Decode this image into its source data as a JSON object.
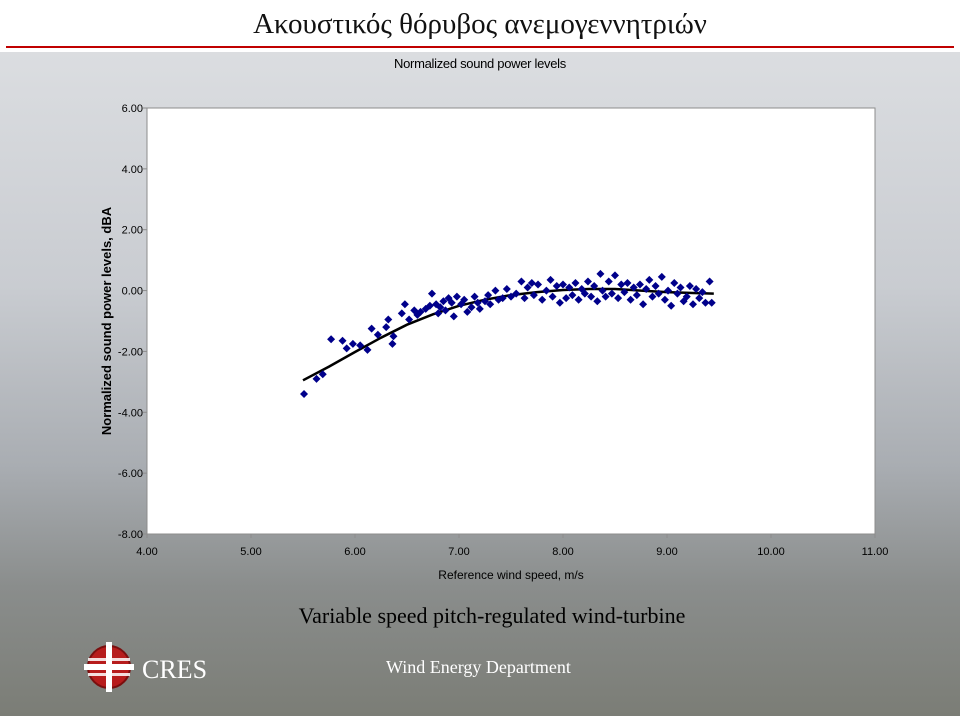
{
  "slide": {
    "title": "Ακουστικός θόρυβος ανεμογεννητριών",
    "caption": "Variable speed pitch-regulated wind-turbine",
    "org_name": "CRES",
    "department": "Wind Energy Department",
    "logo_icon": "cres-logo-icon"
  },
  "colors": {
    "marker": "#00008b",
    "trend_line": "#000000",
    "plot_bg": "#ffffff",
    "accent_rule": "#c00000"
  },
  "chart_data": {
    "type": "scatter",
    "title": "Normalized sound power levels",
    "xlabel": "Reference wind speed, m/s",
    "ylabel": "Normalized sound power levels, dBA",
    "xlim": [
      4,
      11
    ],
    "ylim": [
      -8,
      6
    ],
    "x_ticks": [
      "4.00",
      "5.00",
      "6.00",
      "7.00",
      "8.00",
      "9.00",
      "10.00",
      "11.00"
    ],
    "y_ticks": [
      "6.00",
      "4.00",
      "2.00",
      "0.00",
      "-2.00",
      "-4.00",
      "-6.00",
      "-8.00"
    ],
    "grid": false,
    "legend": "none",
    "marker": "diamond",
    "series": [
      {
        "points": [
          [
            5.51,
            -3.4
          ],
          [
            5.63,
            -2.9
          ],
          [
            5.69,
            -2.75
          ],
          [
            5.77,
            -1.6
          ],
          [
            5.88,
            -1.65
          ],
          [
            5.92,
            -1.9
          ],
          [
            5.98,
            -1.75
          ],
          [
            6.05,
            -1.8
          ],
          [
            6.12,
            -1.95
          ],
          [
            6.16,
            -1.25
          ],
          [
            6.22,
            -1.45
          ],
          [
            6.3,
            -1.2
          ],
          [
            6.32,
            -0.95
          ],
          [
            6.36,
            -1.75
          ],
          [
            6.37,
            -1.5
          ],
          [
            6.45,
            -0.75
          ],
          [
            6.48,
            -0.45
          ],
          [
            6.52,
            -0.95
          ],
          [
            6.57,
            -0.65
          ],
          [
            6.6,
            -0.8
          ],
          [
            6.63,
            -0.7
          ],
          [
            6.68,
            -0.6
          ],
          [
            6.72,
            -0.5
          ],
          [
            6.74,
            -0.1
          ],
          [
            6.78,
            -0.45
          ],
          [
            6.8,
            -0.75
          ],
          [
            6.82,
            -0.55
          ],
          [
            6.85,
            -0.35
          ],
          [
            6.87,
            -0.65
          ],
          [
            6.9,
            -0.25
          ],
          [
            6.93,
            -0.4
          ],
          [
            6.95,
            -0.85
          ],
          [
            6.98,
            -0.2
          ],
          [
            7.02,
            -0.45
          ],
          [
            7.05,
            -0.3
          ],
          [
            7.08,
            -0.7
          ],
          [
            7.12,
            -0.55
          ],
          [
            7.15,
            -0.2
          ],
          [
            7.18,
            -0.4
          ],
          [
            7.2,
            -0.6
          ],
          [
            7.25,
            -0.35
          ],
          [
            7.28,
            -0.15
          ],
          [
            7.3,
            -0.45
          ],
          [
            7.35,
            0.0
          ],
          [
            7.38,
            -0.3
          ],
          [
            7.42,
            -0.25
          ],
          [
            7.46,
            0.05
          ],
          [
            7.5,
            -0.2
          ],
          [
            7.55,
            -0.1
          ],
          [
            7.6,
            0.3
          ],
          [
            7.63,
            -0.25
          ],
          [
            7.66,
            0.1
          ],
          [
            7.7,
            0.25
          ],
          [
            7.72,
            -0.15
          ],
          [
            7.76,
            0.2
          ],
          [
            7.8,
            -0.3
          ],
          [
            7.84,
            0.0
          ],
          [
            7.88,
            0.35
          ],
          [
            7.9,
            -0.2
          ],
          [
            7.94,
            0.15
          ],
          [
            7.97,
            -0.4
          ],
          [
            8.0,
            0.2
          ],
          [
            8.03,
            -0.25
          ],
          [
            8.06,
            0.1
          ],
          [
            8.09,
            -0.15
          ],
          [
            8.12,
            0.25
          ],
          [
            8.15,
            -0.3
          ],
          [
            8.18,
            0.05
          ],
          [
            8.21,
            -0.1
          ],
          [
            8.24,
            0.3
          ],
          [
            8.27,
            -0.2
          ],
          [
            8.3,
            0.15
          ],
          [
            8.33,
            -0.35
          ],
          [
            8.36,
            0.55
          ],
          [
            8.38,
            0.0
          ],
          [
            8.41,
            -0.2
          ],
          [
            8.44,
            0.3
          ],
          [
            8.47,
            -0.1
          ],
          [
            8.5,
            0.5
          ],
          [
            8.53,
            -0.25
          ],
          [
            8.56,
            0.2
          ],
          [
            8.59,
            -0.05
          ],
          [
            8.62,
            0.25
          ],
          [
            8.65,
            -0.3
          ],
          [
            8.68,
            0.1
          ],
          [
            8.71,
            -0.15
          ],
          [
            8.74,
            0.2
          ],
          [
            8.77,
            -0.45
          ],
          [
            8.8,
            0.05
          ],
          [
            8.83,
            0.35
          ],
          [
            8.86,
            -0.2
          ],
          [
            8.89,
            0.15
          ],
          [
            8.92,
            -0.1
          ],
          [
            8.95,
            0.45
          ],
          [
            8.98,
            -0.3
          ],
          [
            9.01,
            0.0
          ],
          [
            9.04,
            -0.5
          ],
          [
            9.07,
            0.25
          ],
          [
            9.1,
            -0.1
          ],
          [
            9.13,
            0.1
          ],
          [
            9.16,
            -0.35
          ],
          [
            9.19,
            -0.2
          ],
          [
            9.22,
            0.15
          ],
          [
            9.25,
            -0.45
          ],
          [
            9.28,
            0.05
          ],
          [
            9.31,
            -0.25
          ],
          [
            9.34,
            -0.05
          ],
          [
            9.37,
            -0.4
          ],
          [
            9.41,
            0.3
          ],
          [
            9.43,
            -0.4
          ]
        ]
      }
    ],
    "trendline": {
      "type": "polynomial",
      "points": [
        [
          5.5,
          -2.95
        ],
        [
          5.75,
          -2.5
        ],
        [
          6.0,
          -2.02
        ],
        [
          6.25,
          -1.55
        ],
        [
          6.5,
          -1.12
        ],
        [
          6.75,
          -0.78
        ],
        [
          7.0,
          -0.5
        ],
        [
          7.25,
          -0.3
        ],
        [
          7.5,
          -0.15
        ],
        [
          7.75,
          -0.05
        ],
        [
          8.0,
          0.02
        ],
        [
          8.25,
          0.05
        ],
        [
          8.5,
          0.05
        ],
        [
          8.75,
          0.0
        ],
        [
          9.0,
          -0.05
        ],
        [
          9.25,
          -0.08
        ],
        [
          9.45,
          -0.1
        ]
      ]
    }
  }
}
